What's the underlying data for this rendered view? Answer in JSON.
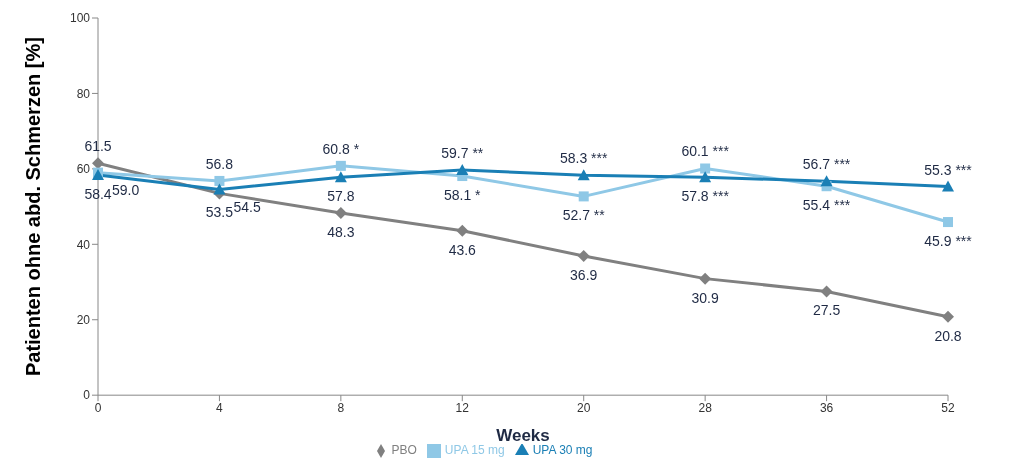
{
  "chart_data": {
    "type": "line",
    "xlabel": "Weeks",
    "ylabel": "Patienten ohne abd. Schmerzen [%]",
    "categories": [
      "0",
      "4",
      "8",
      "12",
      "20",
      "28",
      "36",
      "52"
    ],
    "ylim": [
      0,
      100
    ],
    "yticks": [
      0,
      20,
      40,
      60,
      80,
      100
    ],
    "legend": "bottom",
    "line_style": "solid",
    "series": [
      {
        "name": "PBO",
        "color": "#808080",
        "marker": "diamond",
        "values": [
          61.5,
          53.5,
          48.3,
          43.6,
          36.9,
          30.9,
          27.5,
          20.8
        ],
        "value_labels": [
          "61.5",
          "53.5",
          "48.3",
          "43.6",
          "36.9",
          "30.9",
          "27.5",
          "20.8"
        ]
      },
      {
        "name": "UPA 15 mg",
        "color": "#8fc8e6",
        "marker": "square",
        "values": [
          59.0,
          56.8,
          60.8,
          58.1,
          52.7,
          60.1,
          55.4,
          45.9
        ],
        "value_labels": [
          "59.0",
          "56.8",
          "60.8 *",
          "58.1 *",
          "52.7 **",
          "60.1 ***",
          "55.4 ***",
          "45.9 ***"
        ]
      },
      {
        "name": "UPA 30 mg",
        "color": "#1a7fb5",
        "marker": "triangle",
        "values": [
          58.4,
          54.5,
          57.8,
          59.7,
          58.3,
          57.8,
          56.7,
          55.3
        ],
        "value_labels": [
          "58.4",
          "54.5",
          "57.8",
          "59.7 **",
          "58.3 ***",
          "57.8 ***",
          "56.7 ***",
          "55.3 ***"
        ]
      }
    ]
  }
}
